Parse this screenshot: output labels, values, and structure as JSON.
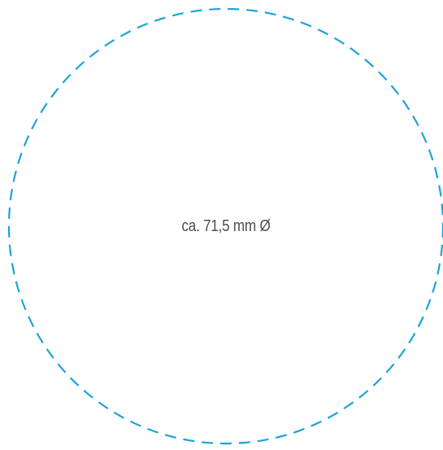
{
  "shape": {
    "kind": "circle",
    "outline_style": "dashed",
    "outline_color": "#1ba3d9",
    "label": "ca. 71,5 mm Ø"
  },
  "text_color": "#4d4d4d"
}
